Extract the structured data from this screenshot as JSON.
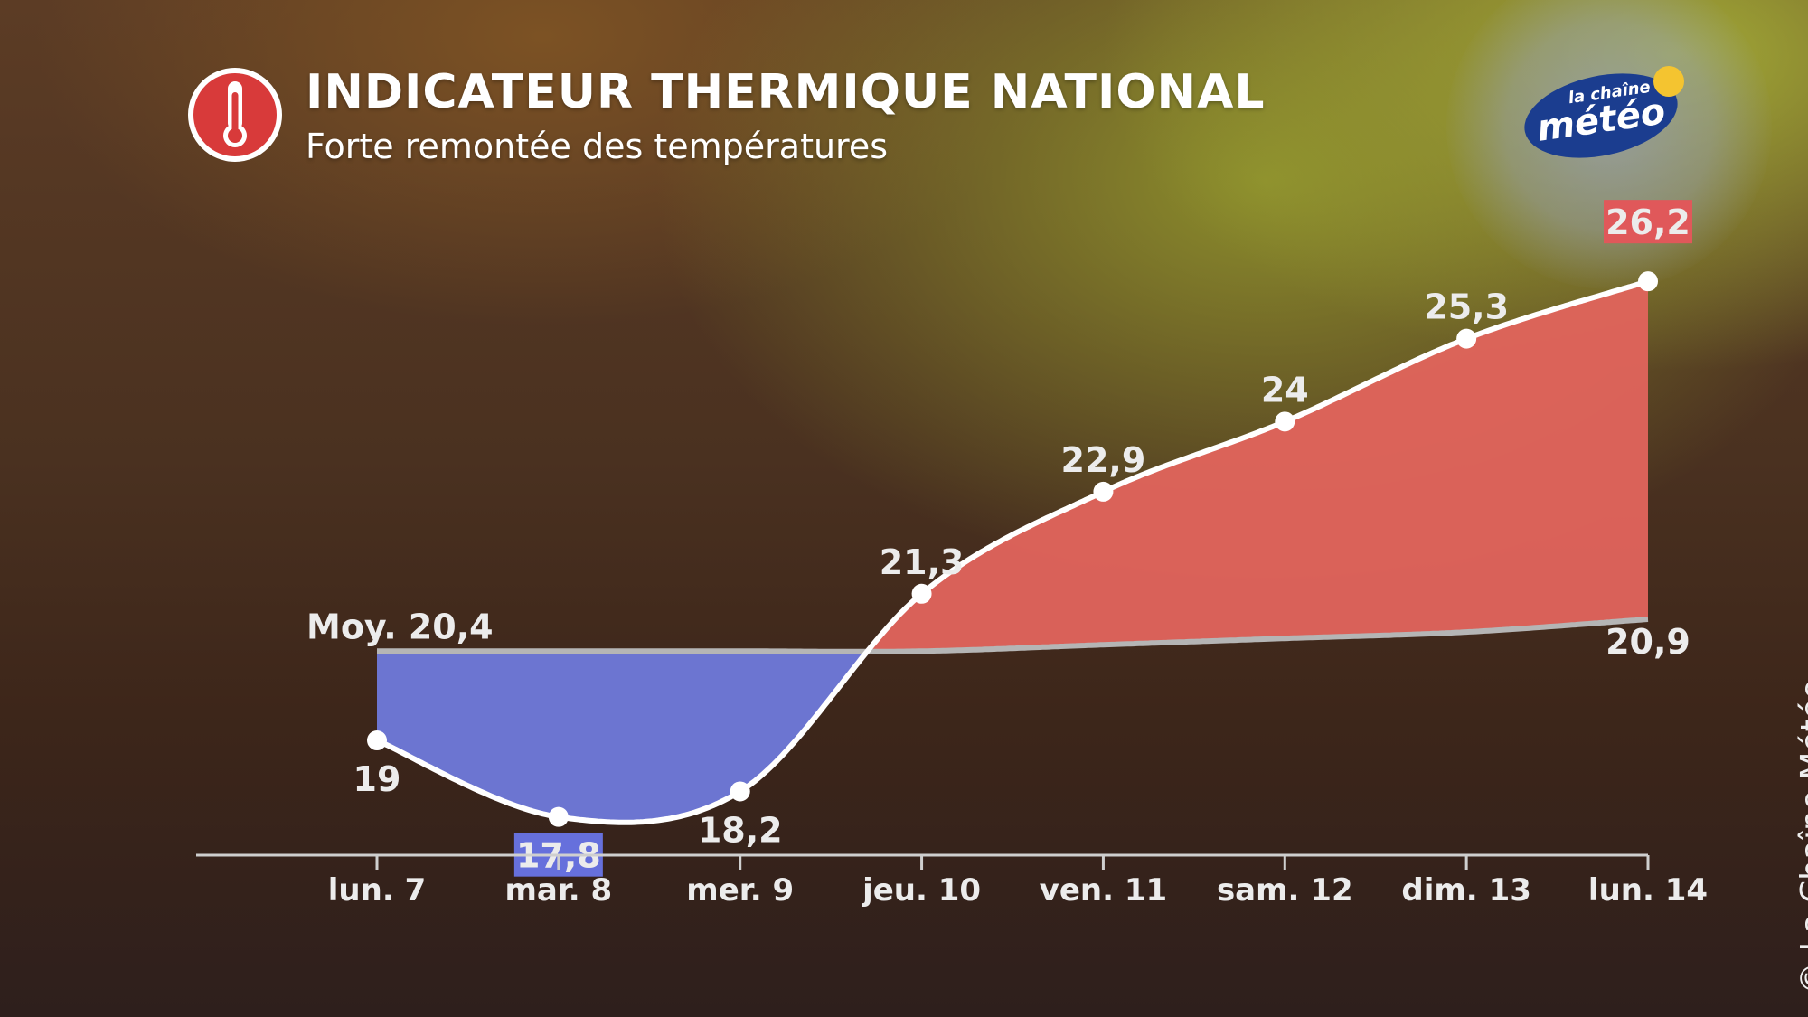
{
  "header": {
    "title": "INDICATEUR THERMIQUE NATIONAL",
    "subtitle": "Forte remontée des températures",
    "icon": "thermometer-icon"
  },
  "logo": {
    "line1": "la chaîne",
    "line2": "météo"
  },
  "copyright": "© La Chaîne Météo",
  "colors": {
    "warm_fill": "#e0645c",
    "cold_fill": "#6e79d8",
    "max_badge": "#e0585a",
    "min_badge": "#6670dc",
    "average_line": "#b5b5b5",
    "temperature_line": "#ffffff",
    "icon_red": "#d83a3a",
    "logo_blue": "#1b3d8f",
    "logo_sun": "#f4c430"
  },
  "chart_data": {
    "type": "area",
    "categories": [
      "lun. 7",
      "mar. 8",
      "mer. 9",
      "jeu. 10",
      "ven. 11",
      "sam. 12",
      "dim. 13",
      "lun. 14"
    ],
    "series": [
      {
        "values": [
          19,
          17.8,
          18.2,
          21.3,
          22.9,
          24,
          25.3,
          26.2
        ],
        "labels": [
          "19",
          "17,8",
          "18,2",
          "21,3",
          "22,9",
          "24",
          "25,3",
          "26,2"
        ]
      },
      {
        "values": [
          20.4,
          20.4,
          20.4,
          20.4,
          20.5,
          20.6,
          20.7,
          20.9
        ]
      }
    ],
    "average_start_label": "Moy. 20,4",
    "average_end_label": "20,9",
    "max_label": "26,2",
    "min_label": "17,8",
    "ylim": [
      17.2,
      26.5
    ],
    "grid": false,
    "legend": "none"
  }
}
